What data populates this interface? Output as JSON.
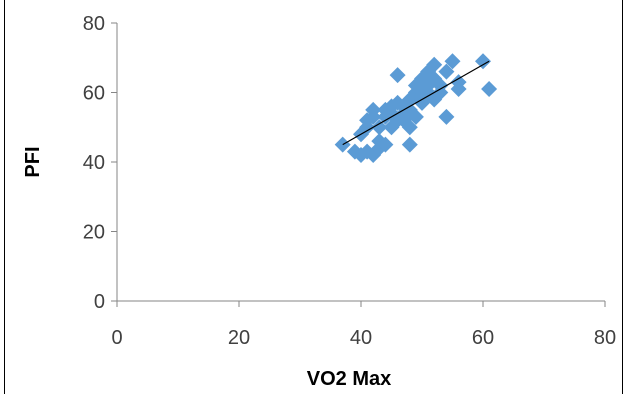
{
  "chart_data": {
    "type": "scatter",
    "title": "",
    "xlabel": "VO2 Max",
    "ylabel": "PFI",
    "xlim": [
      0,
      80
    ],
    "ylim": [
      0,
      80
    ],
    "x_ticks": [
      "0",
      "20",
      "40",
      "60",
      "80"
    ],
    "y_ticks": [
      "0",
      "20",
      "40",
      "60",
      "80"
    ],
    "grid": false,
    "legend": "none",
    "marker": "diamond",
    "marker_color": "#5B9BD5",
    "trendline": {
      "from": [
        37,
        45
      ],
      "to": [
        61,
        69
      ],
      "color": "#000000"
    },
    "series": [
      {
        "points": [
          [
            37,
            45
          ],
          [
            39,
            43
          ],
          [
            40,
            42
          ],
          [
            40,
            48
          ],
          [
            41,
            50
          ],
          [
            41,
            52
          ],
          [
            41,
            43
          ],
          [
            42,
            42
          ],
          [
            42,
            53
          ],
          [
            42,
            55
          ],
          [
            43,
            44
          ],
          [
            43,
            46
          ],
          [
            43,
            50
          ],
          [
            44,
            45
          ],
          [
            44,
            53
          ],
          [
            44,
            55
          ],
          [
            45,
            50
          ],
          [
            45,
            54
          ],
          [
            45,
            56
          ],
          [
            46,
            52
          ],
          [
            46,
            57
          ],
          [
            46,
            65
          ],
          [
            47,
            54
          ],
          [
            47,
            56
          ],
          [
            47,
            52
          ],
          [
            48,
            50
          ],
          [
            48,
            58
          ],
          [
            48,
            45
          ],
          [
            48,
            55
          ],
          [
            49,
            60
          ],
          [
            49,
            62
          ],
          [
            49,
            53
          ],
          [
            50,
            57
          ],
          [
            50,
            58
          ],
          [
            50,
            62
          ],
          [
            50,
            64
          ],
          [
            51,
            60
          ],
          [
            51,
            66
          ],
          [
            51,
            62
          ],
          [
            52,
            58
          ],
          [
            52,
            64
          ],
          [
            52,
            68
          ],
          [
            53,
            60
          ],
          [
            53,
            62
          ],
          [
            54,
            53
          ],
          [
            54,
            66
          ],
          [
            55,
            69
          ],
          [
            56,
            61
          ],
          [
            56,
            63
          ],
          [
            60,
            69
          ],
          [
            61,
            61
          ]
        ]
      }
    ]
  }
}
